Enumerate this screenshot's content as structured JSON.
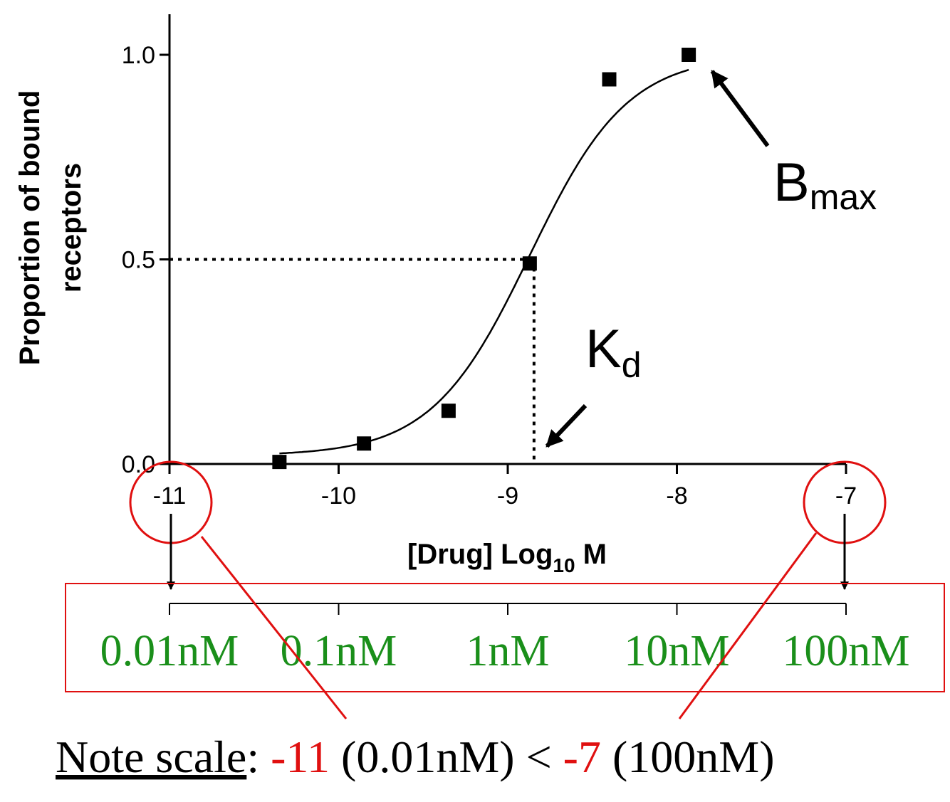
{
  "colors": {
    "axis": "#000000",
    "curve": "#000000",
    "marker": "#000000",
    "highlight": "#e01010",
    "conc_text": "#1a8f1a"
  },
  "chart_data": {
    "type": "scatter",
    "xlabel": {
      "main": "[Drug] Log",
      "sub": "10",
      "suffix": " M"
    },
    "ylabel": [
      "Proportion of bound",
      "receptors"
    ],
    "xlim": [
      -11,
      -7
    ],
    "ylim": [
      0,
      1.0
    ],
    "xticks": [
      -11,
      -10,
      -9,
      -8,
      -7
    ],
    "xtick_labels": [
      "-11",
      "-10",
      "-9",
      "-8",
      "-7"
    ],
    "yticks": [
      0,
      0.5,
      1.0
    ],
    "ytick_labels": [
      "0.0",
      "0.5",
      "1.0"
    ],
    "points": [
      {
        "x": -10.35,
        "y": 0.005
      },
      {
        "x": -9.85,
        "y": 0.05
      },
      {
        "x": -9.35,
        "y": 0.13
      },
      {
        "x": -8.87,
        "y": 0.49
      },
      {
        "x": -8.4,
        "y": 0.94
      },
      {
        "x": -7.93,
        "y": 1.0
      }
    ],
    "fit_curve": {
      "bottom": 0.02,
      "top": 1.0,
      "logEC50": -8.87,
      "hill": 1.5,
      "x_end": -7.93
    },
    "kd_guide": {
      "x": -8.87,
      "y": 0.5
    },
    "annotations": {
      "bmax": {
        "main": "B",
        "sub": "max"
      },
      "kd": {
        "main": "K",
        "sub": "d"
      }
    },
    "concentration_scale": {
      "ticks": [
        -11,
        -10,
        -9,
        -8,
        -7
      ],
      "labels": [
        "0.01nM",
        "0.1nM",
        "1nM",
        "10nM",
        "100nM"
      ]
    }
  },
  "note": {
    "label": "Note scale",
    "colon": ":",
    "v1": "-11",
    "v1_conc": " (0.01nM) < ",
    "v2": "-7",
    "v2_conc": " (100nM)"
  }
}
